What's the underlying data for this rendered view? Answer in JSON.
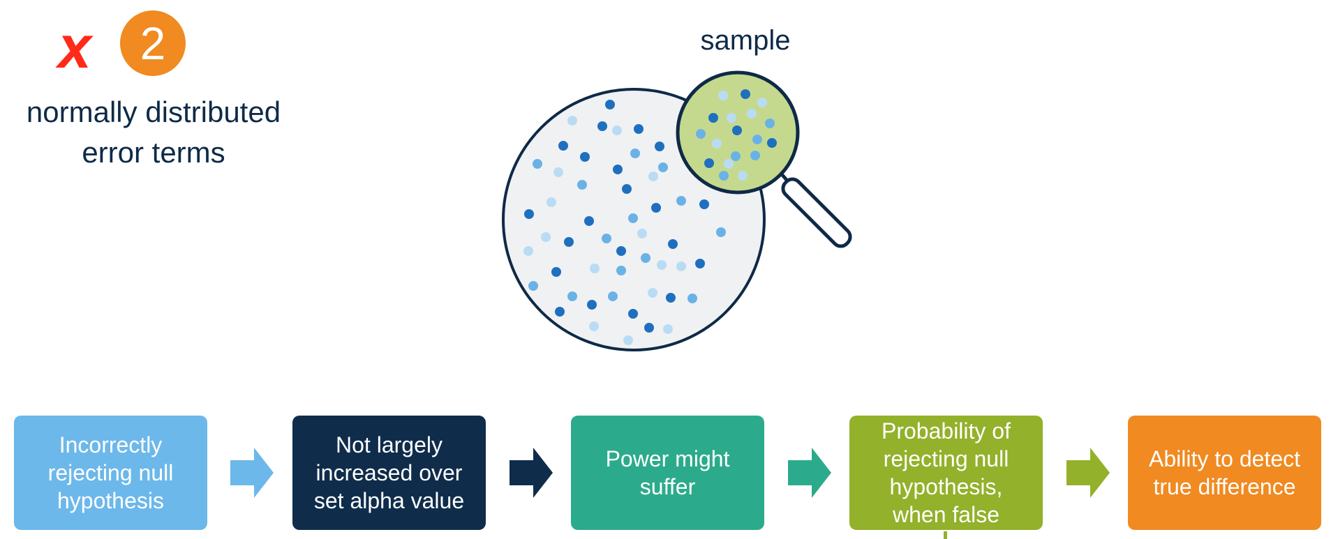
{
  "header": {
    "cross_glyph": "x",
    "assumption_number": "2",
    "assumption_label_line1": "normally distributed",
    "assumption_label_line2": "error terms"
  },
  "illustration": {
    "label": "sample",
    "colors": {
      "outline": "#0e2a47",
      "population_fill": "#f0f1f3",
      "lens_fill": "#c5d98e",
      "dot_dark": "#1f6fbf",
      "dot_mid": "#6ab2e6",
      "dot_light": "#b9dcf4"
    }
  },
  "flow": {
    "steps": [
      {
        "id": "step-1",
        "lines": [
          "Incorrectly",
          "rejecting null",
          "hypothesis"
        ],
        "color": "#6cb8ea"
      },
      {
        "id": "step-2",
        "lines": [
          "Not largely",
          "increased over",
          "set alpha value"
        ],
        "color": "#0f2d4b"
      },
      {
        "id": "step-3",
        "lines": [
          "Power might",
          "suffer"
        ],
        "color": "#2bab8b"
      },
      {
        "id": "step-4",
        "lines": [
          "Probability of",
          "rejecting null",
          "hypothesis,",
          "when false"
        ],
        "color": "#93b12a"
      },
      {
        "id": "step-5",
        "lines": [
          "Ability to detect",
          "true difference"
        ],
        "color": "#f08a21"
      }
    ],
    "arrow_colors": [
      "#6cb8ea",
      "#0f2d4b",
      "#2bab8b",
      "#93b12a"
    ]
  }
}
